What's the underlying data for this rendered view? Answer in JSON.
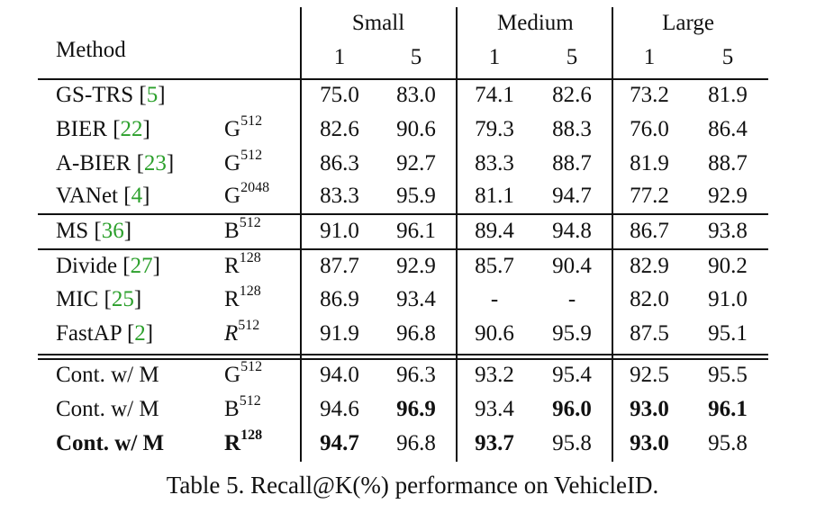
{
  "table": {
    "header": {
      "method": "Method",
      "groups": [
        "Small",
        "Medium",
        "Large"
      ],
      "k_values": [
        "1",
        "5",
        "1",
        "5",
        "1",
        "5"
      ]
    },
    "sections": [
      {
        "rows": [
          {
            "method": "GS-TRS",
            "ref": "5",
            "emb_base": "",
            "emb_dim": "",
            "emb_italic": false,
            "method_bold": false,
            "values": [
              "75.0",
              "83.0",
              "74.1",
              "82.6",
              "73.2",
              "81.9"
            ],
            "bold": [
              false,
              false,
              false,
              false,
              false,
              false
            ]
          },
          {
            "method": "BIER",
            "ref": "22",
            "emb_base": "G",
            "emb_dim": "512",
            "emb_italic": false,
            "method_bold": false,
            "values": [
              "82.6",
              "90.6",
              "79.3",
              "88.3",
              "76.0",
              "86.4"
            ],
            "bold": [
              false,
              false,
              false,
              false,
              false,
              false
            ]
          },
          {
            "method": "A-BIER",
            "ref": "23",
            "emb_base": "G",
            "emb_dim": "512",
            "emb_italic": false,
            "method_bold": false,
            "values": [
              "86.3",
              "92.7",
              "83.3",
              "88.7",
              "81.9",
              "88.7"
            ],
            "bold": [
              false,
              false,
              false,
              false,
              false,
              false
            ]
          },
          {
            "method": "VANet",
            "ref": "4",
            "emb_base": "G",
            "emb_dim": "2048",
            "emb_italic": false,
            "method_bold": false,
            "values": [
              "83.3",
              "95.9",
              "81.1",
              "94.7",
              "77.2",
              "92.9"
            ],
            "bold": [
              false,
              false,
              false,
              false,
              false,
              false
            ]
          }
        ]
      },
      {
        "rows": [
          {
            "method": "MS",
            "ref": "36",
            "emb_base": "B",
            "emb_dim": "512",
            "emb_italic": false,
            "method_bold": false,
            "values": [
              "91.0",
              "96.1",
              "89.4",
              "94.8",
              "86.7",
              "93.8"
            ],
            "bold": [
              false,
              false,
              false,
              false,
              false,
              false
            ]
          }
        ]
      },
      {
        "rows": [
          {
            "method": "Divide",
            "ref": "27",
            "emb_base": "R",
            "emb_dim": "128",
            "emb_italic": false,
            "method_bold": false,
            "values": [
              "87.7",
              "92.9",
              "85.7",
              "90.4",
              "82.9",
              "90.2"
            ],
            "bold": [
              false,
              false,
              false,
              false,
              false,
              false
            ]
          },
          {
            "method": "MIC",
            "ref": "25",
            "emb_base": "R",
            "emb_dim": "128",
            "emb_italic": false,
            "method_bold": false,
            "values": [
              "86.9",
              "93.4",
              "-",
              "-",
              "82.0",
              "91.0"
            ],
            "bold": [
              false,
              false,
              false,
              false,
              false,
              false
            ]
          },
          {
            "method": "FastAP",
            "ref": "2",
            "emb_base": "R",
            "emb_dim": "512",
            "emb_italic": true,
            "method_bold": false,
            "values": [
              "91.9",
              "96.8",
              "90.6",
              "95.9",
              "87.5",
              "95.1"
            ],
            "bold": [
              false,
              false,
              false,
              false,
              false,
              false
            ]
          }
        ]
      },
      {
        "rows": [
          {
            "method": "Cont. w/ M",
            "ref": "",
            "emb_base": "G",
            "emb_dim": "512",
            "emb_italic": false,
            "method_bold": false,
            "values": [
              "94.0",
              "96.3",
              "93.2",
              "95.4",
              "92.5",
              "95.5"
            ],
            "bold": [
              false,
              false,
              false,
              false,
              false,
              false
            ]
          },
          {
            "method": "Cont. w/ M",
            "ref": "",
            "emb_base": "B",
            "emb_dim": "512",
            "emb_italic": false,
            "method_bold": false,
            "values": [
              "94.6",
              "96.9",
              "93.4",
              "96.0",
              "93.0",
              "96.1"
            ],
            "bold": [
              false,
              true,
              false,
              true,
              true,
              true
            ]
          },
          {
            "method": "Cont. w/ M",
            "ref": "",
            "emb_base": "R",
            "emb_dim": "128",
            "emb_italic": false,
            "method_bold": true,
            "values": [
              "94.7",
              "96.8",
              "93.7",
              "95.8",
              "93.0",
              "95.8"
            ],
            "bold": [
              true,
              false,
              true,
              false,
              true,
              false
            ]
          }
        ]
      }
    ]
  },
  "caption": "Table 5. Recall@K(%) performance on VehicleID."
}
